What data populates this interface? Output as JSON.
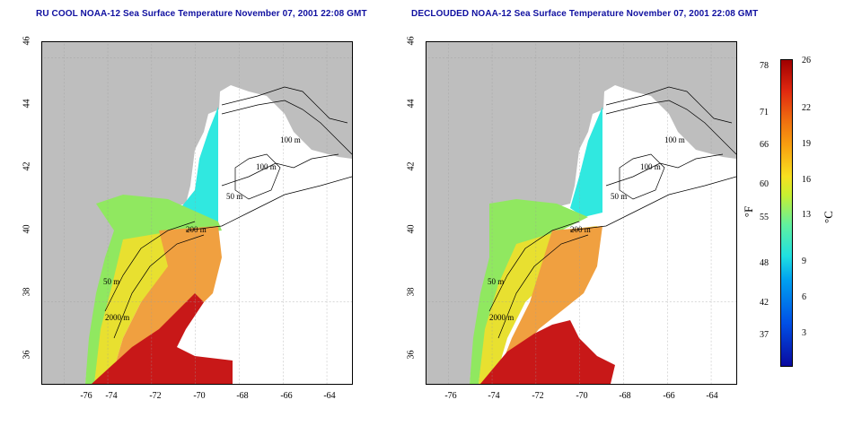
{
  "titles": {
    "left": "RU COOL NOAA-12 Sea Surface Temperature November 07, 2001 22:08 GMT",
    "right": "DECLOUDED NOAA-12 Sea Surface Temperature November 07, 2001 22:08 GMT"
  },
  "axes": {
    "lat_ticks": [
      "46",
      "44",
      "42",
      "40",
      "38",
      "36"
    ],
    "lon_ticks": [
      "-76",
      "-74",
      "-72",
      "-70",
      "-68",
      "-66",
      "-64"
    ]
  },
  "contour_labels": [
    "100 m",
    "100 m",
    "50 m",
    "50 m",
    "200 m",
    "50 m",
    "2000 m"
  ],
  "colorbar": {
    "fahrenheit_ticks": [
      "78",
      "71",
      "66",
      "60",
      "55",
      "48",
      "42",
      "37"
    ],
    "celsius_ticks": [
      "26",
      "22",
      "19",
      "16",
      "13",
      "9",
      "6",
      "3"
    ],
    "fahrenheit_unit": "°F",
    "celsius_unit": "°C"
  },
  "colors": {
    "land": "#bebebe",
    "title": "#1010a0",
    "warm": "#c01010",
    "cool": "#20e0e0"
  }
}
